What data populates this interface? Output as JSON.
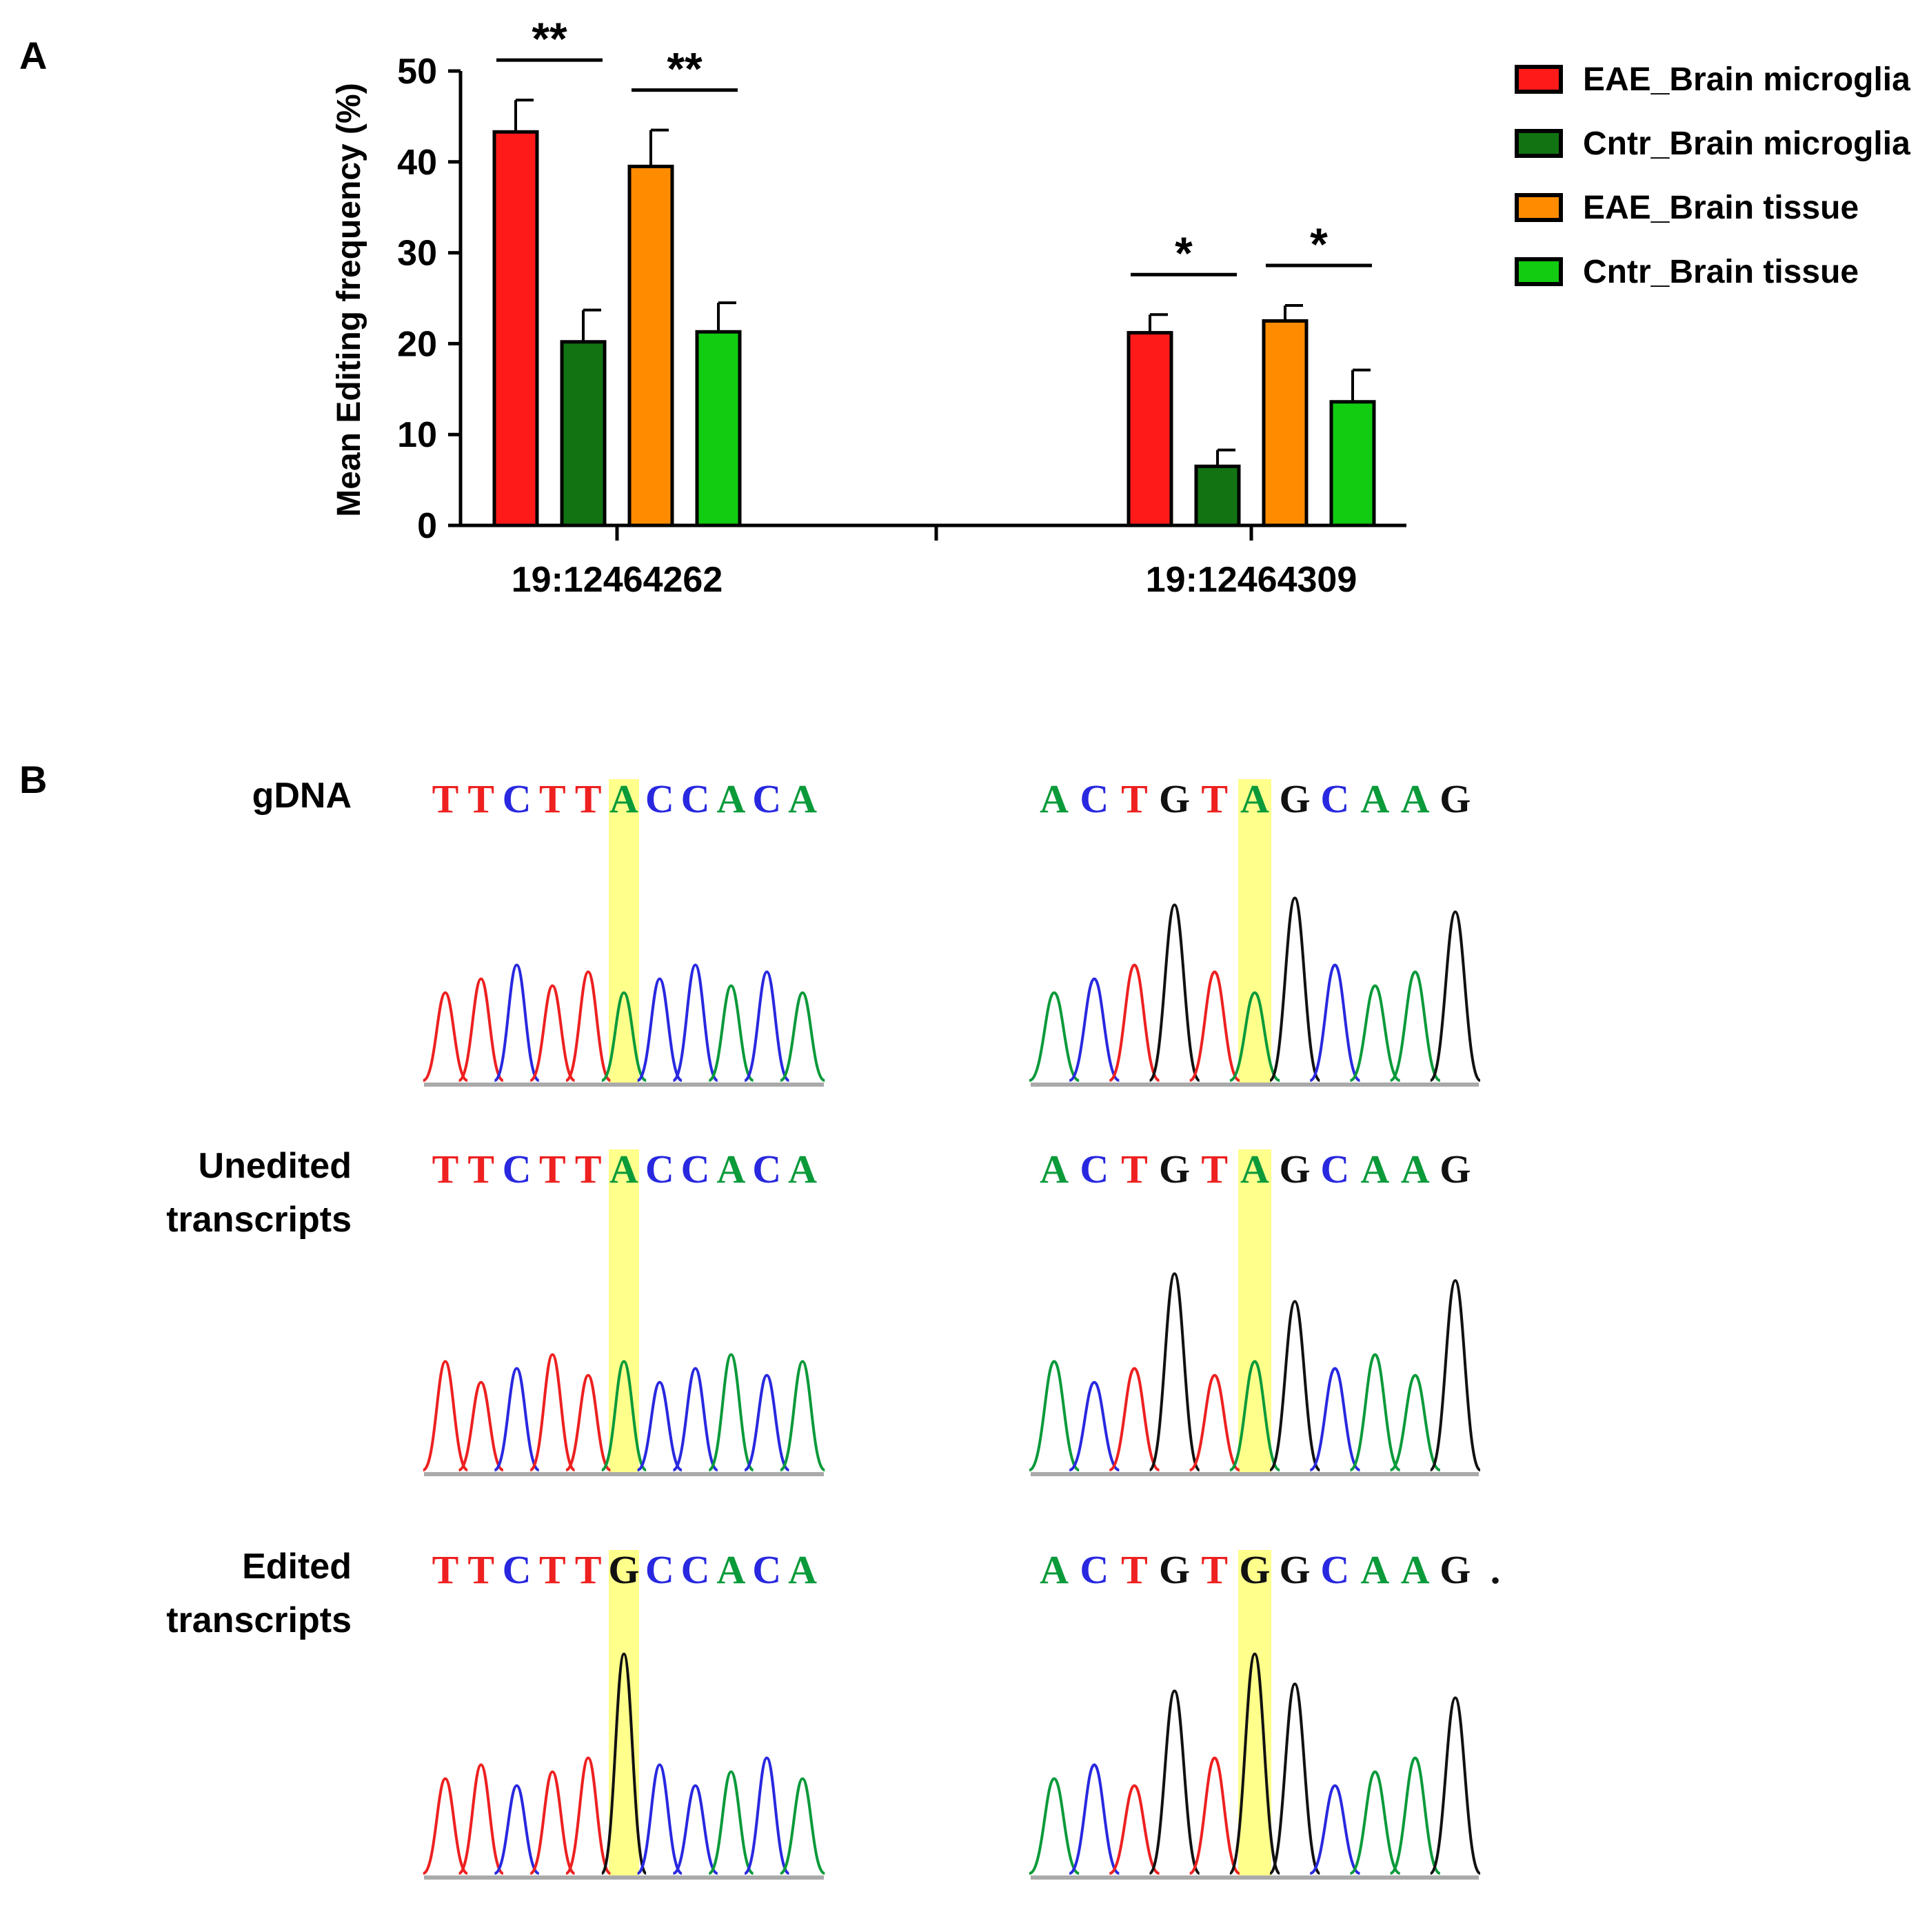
{
  "panel_a_label": "A",
  "panel_b_label": "B",
  "colors": {
    "EAE_Brain microglia": "#ff1a1a",
    "Cntr_Brain microglia": "#127312",
    "EAE_Brain tissue": "#ff8c00",
    "Cntr_Brain tissue": "#12cc12",
    "base_A": "#0a9a3a",
    "base_C": "#2828e0",
    "base_G": "#111111",
    "base_T": "#ee2020",
    "highlight": "#ffff66"
  },
  "chart_data": {
    "type": "bar",
    "ylabel": "Mean Editing frequency (%)",
    "xlabel": "",
    "ylim": [
      0,
      50
    ],
    "yticks": [
      0,
      10,
      20,
      30,
      40,
      50
    ],
    "categories": [
      "19:12464262",
      "19:12464309"
    ],
    "series": [
      {
        "name": "EAE_Brain microglia",
        "values": [
          43.3,
          21.2
        ],
        "errors": [
          3.5,
          2.0
        ]
      },
      {
        "name": "Cntr_Brain microglia",
        "values": [
          20.2,
          6.5
        ],
        "errors": [
          3.5,
          1.8
        ]
      },
      {
        "name": "EAE_Brain tissue",
        "values": [
          39.5,
          22.5
        ],
        "errors": [
          4.0,
          1.7
        ]
      },
      {
        "name": "Cntr_Brain tissue",
        "values": [
          21.3,
          13.6
        ],
        "errors": [
          3.2,
          3.5
        ]
      }
    ],
    "significance": [
      {
        "category": "19:12464262",
        "pair": [
          "EAE_Brain microglia",
          "Cntr_Brain microglia"
        ],
        "label": "**"
      },
      {
        "category": "19:12464262",
        "pair": [
          "EAE_Brain tissue",
          "Cntr_Brain tissue"
        ],
        "label": "**"
      },
      {
        "category": "19:12464309",
        "pair": [
          "EAE_Brain microglia",
          "Cntr_Brain microglia"
        ],
        "label": "*"
      },
      {
        "category": "19:12464309",
        "pair": [
          "EAE_Brain tissue",
          "Cntr_Brain tissue"
        ],
        "label": "*"
      }
    ],
    "legend": [
      "EAE_Brain microglia",
      "Cntr_Brain microglia",
      "EAE_Brain tissue",
      "Cntr_Brain tissue"
    ],
    "legend_position": "top-right"
  },
  "chromatograms": {
    "rows": [
      {
        "label_lines": [
          "gDNA"
        ]
      },
      {
        "label_lines": [
          "Unedited",
          "transcripts"
        ]
      },
      {
        "label_lines": [
          "Edited",
          "transcripts"
        ]
      }
    ],
    "sequences": [
      [
        "TTCTTACCACA",
        "ACTGTAGCAAG"
      ],
      [
        "TTCTTACCACA",
        "ACTGTAGCAAG"
      ],
      [
        "TTCTTGCCACA",
        "ACTGTGGCAAG."
      ]
    ],
    "highlight_index": 5
  }
}
